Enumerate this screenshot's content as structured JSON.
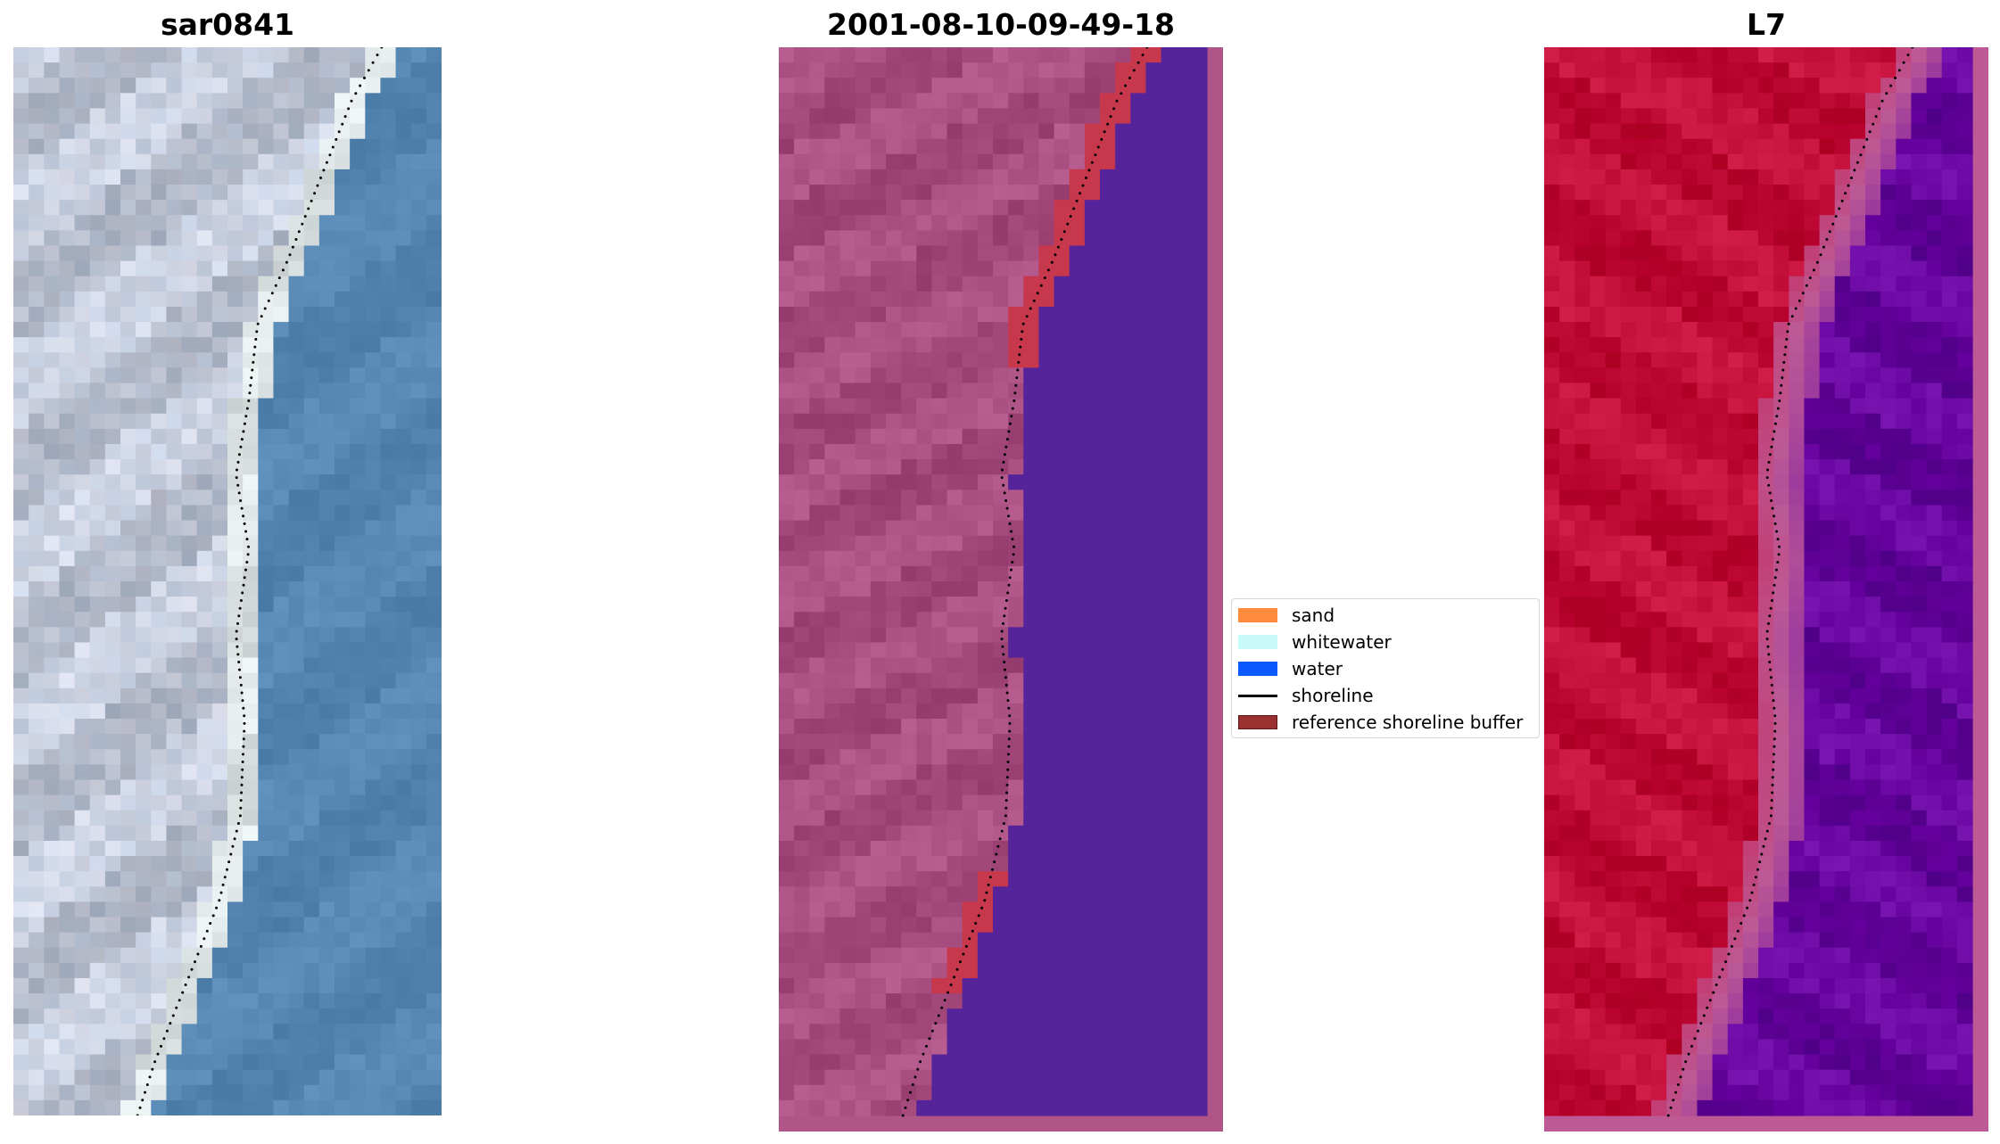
{
  "panels": [
    {
      "title": "sar0841",
      "kind": "rgb-image"
    },
    {
      "title": "2001-08-10-09-49-18",
      "kind": "classified-image"
    },
    {
      "title": "L7",
      "kind": "mndwi-image"
    }
  ],
  "legend": {
    "entries": [
      {
        "label": "sand",
        "color": "#ff8c3c",
        "type": "patch"
      },
      {
        "label": "whitewater",
        "color": "#c8fafa",
        "type": "patch"
      },
      {
        "label": "water",
        "color": "#0a5aff",
        "type": "patch"
      },
      {
        "label": "shoreline",
        "color": "#000000",
        "type": "line"
      },
      {
        "label": "reference shoreline buffer",
        "color": "#9a3030",
        "type": "patch"
      }
    ]
  },
  "colors": {
    "land_rgb": "#c5d0e2",
    "water_rgb": "#5b8bb7",
    "surf_rgb": "#f2f7f2",
    "land_class": "#b05588",
    "water_class": "#55239a",
    "buffer_class": "#c8384d",
    "land_index": "#c8143e",
    "water_index": "#6e0aa6",
    "transition_index": "#bd5a96",
    "shoreline_dots": "#000000"
  }
}
